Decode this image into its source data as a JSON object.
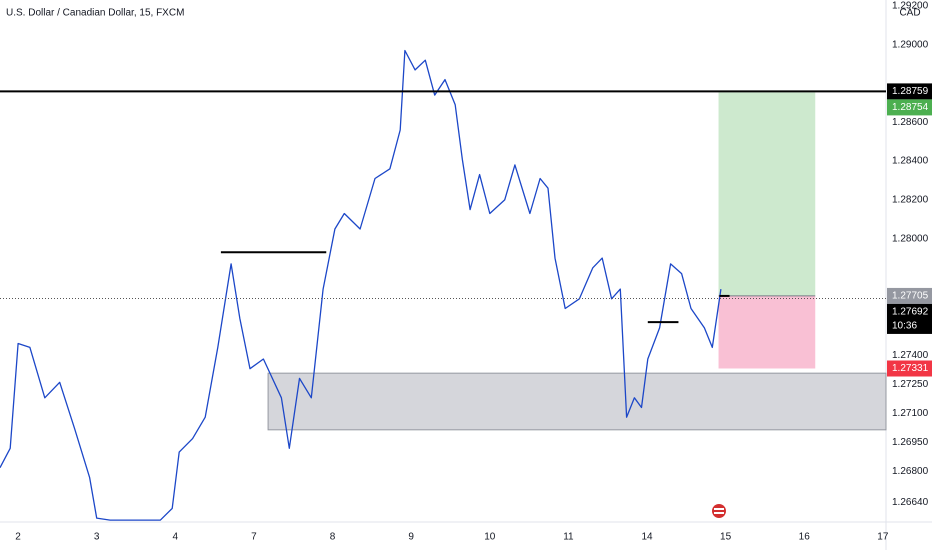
{
  "chart_data": {
    "type": "line",
    "title": "U.S. Dollar / Canadian Dollar, 15, FXCM",
    "currency": "CAD",
    "color": "#1c47c8",
    "x": [
      -0.23,
      -0.1,
      0,
      0.15,
      0.34,
      0.53,
      0.72,
      0.91,
      1,
      1.17,
      1.56,
      1.81,
      1.96,
      2.05,
      2.22,
      2.38,
      2.54,
      2.71,
      2.82,
      2.95,
      3.12,
      3.35,
      3.45,
      3.58,
      3.73,
      3.88,
      4.03,
      4.15,
      4.35,
      4.54,
      4.73,
      4.86,
      4.92,
      5.05,
      5.18,
      5.3,
      5.43,
      5.56,
      5.65,
      5.75,
      5.87,
      6,
      6.19,
      6.32,
      6.51,
      6.64,
      6.74,
      6.83,
      6.96,
      7.14,
      7.31,
      7.43,
      7.55,
      7.66,
      7.74,
      7.84,
      7.93,
      8.01,
      8.16,
      8.3,
      8.44,
      8.56,
      8.73,
      8.83,
      8.94
    ],
    "values": [
      1.2682,
      1.2692,
      1.2746,
      1.2744,
      1.2718,
      1.2726,
      1.2702,
      1.2677,
      1.2656,
      1.2655,
      1.2655,
      1.2655,
      1.2661,
      1.269,
      1.2697,
      1.2708,
      1.2744,
      1.2787,
      1.2759,
      1.2733,
      1.2738,
      1.2718,
      1.2692,
      1.2728,
      1.2718,
      1.2774,
      1.2805,
      1.2813,
      1.2805,
      1.2831,
      1.2836,
      1.2856,
      1.2897,
      1.2887,
      1.2892,
      1.2874,
      1.2882,
      1.2869,
      1.2841,
      1.2815,
      1.2833,
      1.2813,
      1.282,
      1.2838,
      1.2813,
      1.2831,
      1.2826,
      1.279,
      1.2764,
      1.2769,
      1.2785,
      1.279,
      1.2769,
      1.2774,
      1.2708,
      1.2718,
      1.2713,
      1.2738,
      1.2754,
      1.2787,
      1.2782,
      1.2764,
      1.2754,
      1.2744,
      1.2774
    ],
    "xlim": [
      -0.23,
      11.04
    ],
    "ylim": [
      1.2654,
      1.2923
    ],
    "xticks": [
      {
        "value": 0,
        "label": "2"
      },
      {
        "value": 1,
        "label": "3"
      },
      {
        "value": 2,
        "label": "4"
      },
      {
        "value": 3,
        "label": "7"
      },
      {
        "value": 4,
        "label": "8"
      },
      {
        "value": 5,
        "label": "9"
      },
      {
        "value": 6,
        "label": "10"
      },
      {
        "value": 7,
        "label": "11"
      },
      {
        "value": 8,
        "label": "14"
      },
      {
        "value": 9,
        "label": "15"
      },
      {
        "value": 10,
        "label": "16"
      },
      {
        "value": 11,
        "label": "17"
      }
    ],
    "yticks": [
      {
        "value": 1.292,
        "label": "1.29200"
      },
      {
        "value": 1.29,
        "label": "1.29000"
      },
      {
        "value": 1.286,
        "label": "1.28600"
      },
      {
        "value": 1.284,
        "label": "1.28400"
      },
      {
        "value": 1.282,
        "label": "1.28200"
      },
      {
        "value": 1.28,
        "label": "1.28000"
      },
      {
        "value": 1.274,
        "label": "1.27400"
      },
      {
        "value": 1.2725,
        "label": "1.27250"
      },
      {
        "value": 1.271,
        "label": "1.27100"
      },
      {
        "value": 1.2695,
        "label": "1.26950"
      },
      {
        "value": 1.268,
        "label": "1.26800"
      },
      {
        "value": 1.2664,
        "label": "1.26640"
      }
    ],
    "grid": false,
    "level": 1.28759,
    "segments": [
      {
        "price": 1.2793,
        "start": 2.58,
        "end": 3.92
      },
      {
        "price": 1.2757,
        "start": 8.01,
        "end": 8.4
      },
      {
        "price": 1.27705,
        "start": 8.92,
        "end": 9.05
      }
    ],
    "zone": {
      "top": 1.27307,
      "bottom": 1.27015,
      "start": 3.18,
      "color": "#b2b5be"
    },
    "position": {
      "target": 1.28754,
      "entry": 1.27705,
      "stop": 1.27331,
      "start": 8.91,
      "end": 10.14,
      "profit_color": "#4caf50",
      "loss_color": "#e91e63"
    },
    "current_price": 1.27692,
    "countdown": "10:36",
    "price_labels": [
      {
        "value": 1.28759,
        "label": "1.28759",
        "color": "#000000"
      },
      {
        "value": 1.28754,
        "label": "1.28754",
        "color": "#4caf50"
      },
      {
        "value": 1.27705,
        "label": "1.27705",
        "color": "#9598a1"
      },
      {
        "value": 1.27692,
        "label": "1.27692",
        "color": "#000000"
      },
      {
        "value": 1.27331,
        "label": "1.27331",
        "color": "#f23645"
      }
    ]
  }
}
